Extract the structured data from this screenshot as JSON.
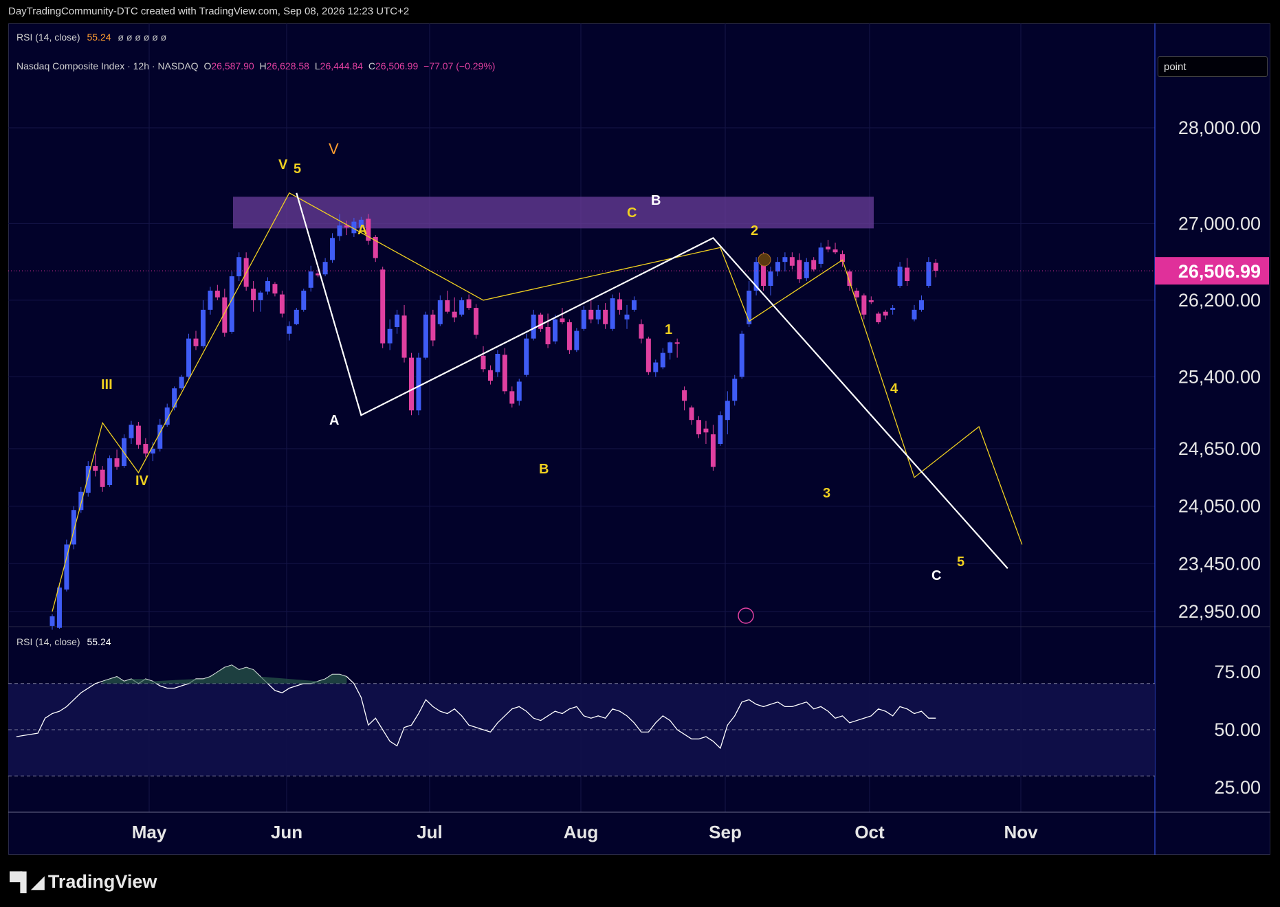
{
  "header": {
    "credit": "DayTradingCommunity-DTC created with TradingView.com, Sep 08, 2026 12:23 UTC+2"
  },
  "rsi_top_legend": {
    "label": "RSI (14, close)",
    "value": "55.24",
    "extras": "ø ø ø ø ø ø"
  },
  "price_legend": {
    "symbol": "Nasdaq Composite Index · 12h · NASDAQ",
    "o_label": "O",
    "o": "26,587.90",
    "h_label": "H",
    "h": "26,628.58",
    "l_label": "L",
    "l": "26,444.84",
    "c_label": "C",
    "c": "26,506.99",
    "change": "−77.07 (−0.29%)"
  },
  "drawing_mode_box": {
    "label": "point"
  },
  "rsi_pane_legend": {
    "label": "RSI (14, close)",
    "value": "55.24"
  },
  "footer": {
    "brand": "TradingView"
  },
  "colors": {
    "background": "#02022a",
    "up": "#3f5cf5",
    "down": "#e040a0",
    "zone": "#6a3d9a",
    "yellow_wave": "#f0d020",
    "white_wave": "#ffffff",
    "price_tag": "#e0309a"
  },
  "chart_data": {
    "type": "candlestick",
    "title": "Nasdaq Composite Index · 12h · NASDAQ",
    "price_axis_ticks": [
      28000,
      27000,
      26200,
      25400,
      24650,
      24050,
      23450,
      22950
    ],
    "price_axis_tick_labels": [
      "28,000.00",
      "27,000.00",
      "26,200.00",
      "25,400.00",
      "24,650.00",
      "24,050.00",
      "23,450.00",
      "22,950.00"
    ],
    "time_axis_labels": [
      "May",
      "Jun",
      "Jul",
      "Aug",
      "Sep",
      "Oct",
      "Nov"
    ],
    "last_price": 26506.99,
    "last_price_label": "26,506.99",
    "resistance_zone": [
      26950,
      27280
    ],
    "candles": [
      {
        "o": 22800,
        "h": 22920,
        "l": 22760,
        "c": 22900
      },
      {
        "o": 22780,
        "h": 23250,
        "l": 22770,
        "c": 23200
      },
      {
        "o": 23180,
        "h": 23700,
        "l": 23160,
        "c": 23650
      },
      {
        "o": 23650,
        "h": 24050,
        "l": 23600,
        "c": 24010
      },
      {
        "o": 24010,
        "h": 24250,
        "l": 23980,
        "c": 24200
      },
      {
        "o": 24190,
        "h": 24520,
        "l": 24150,
        "c": 24470
      },
      {
        "o": 24470,
        "h": 24600,
        "l": 24360,
        "c": 24420
      },
      {
        "o": 24430,
        "h": 24470,
        "l": 24200,
        "c": 24250
      },
      {
        "o": 24270,
        "h": 24580,
        "l": 24250,
        "c": 24550
      },
      {
        "o": 24550,
        "h": 24640,
        "l": 24430,
        "c": 24460
      },
      {
        "o": 24470,
        "h": 24800,
        "l": 24450,
        "c": 24760
      },
      {
        "o": 24760,
        "h": 24940,
        "l": 24700,
        "c": 24900
      },
      {
        "o": 24890,
        "h": 24930,
        "l": 24650,
        "c": 24690
      },
      {
        "o": 24700,
        "h": 24760,
        "l": 24560,
        "c": 24600
      },
      {
        "o": 24600,
        "h": 24720,
        "l": 24520,
        "c": 24650
      },
      {
        "o": 24650,
        "h": 24960,
        "l": 24620,
        "c": 24900
      },
      {
        "o": 24900,
        "h": 25120,
        "l": 24880,
        "c": 25080
      },
      {
        "o": 25080,
        "h": 25300,
        "l": 25050,
        "c": 25280
      },
      {
        "o": 25280,
        "h": 25420,
        "l": 25260,
        "c": 25400
      },
      {
        "o": 25400,
        "h": 25850,
        "l": 25380,
        "c": 25800
      },
      {
        "o": 25800,
        "h": 25880,
        "l": 25680,
        "c": 25720
      },
      {
        "o": 25720,
        "h": 26200,
        "l": 25700,
        "c": 26100
      },
      {
        "o": 26100,
        "h": 26340,
        "l": 26050,
        "c": 26300
      },
      {
        "o": 26300,
        "h": 26360,
        "l": 26200,
        "c": 26230
      },
      {
        "o": 26230,
        "h": 26320,
        "l": 25820,
        "c": 25860
      },
      {
        "o": 25870,
        "h": 26500,
        "l": 25850,
        "c": 26450
      },
      {
        "o": 26450,
        "h": 26700,
        "l": 26400,
        "c": 26650
      },
      {
        "o": 26640,
        "h": 26700,
        "l": 26300,
        "c": 26340
      },
      {
        "o": 26320,
        "h": 26400,
        "l": 26080,
        "c": 26200
      },
      {
        "o": 26200,
        "h": 26300,
        "l": 26080,
        "c": 26280
      },
      {
        "o": 26290,
        "h": 26440,
        "l": 26260,
        "c": 26400
      },
      {
        "o": 26370,
        "h": 26390,
        "l": 26240,
        "c": 26270
      },
      {
        "o": 26260,
        "h": 26300,
        "l": 26020,
        "c": 26060
      },
      {
        "o": 25850,
        "h": 25980,
        "l": 25780,
        "c": 25930
      },
      {
        "o": 25950,
        "h": 26120,
        "l": 25940,
        "c": 26100
      },
      {
        "o": 26100,
        "h": 26320,
        "l": 26080,
        "c": 26300
      },
      {
        "o": 26330,
        "h": 26560,
        "l": 26290,
        "c": 26500
      },
      {
        "o": 26480,
        "h": 26520,
        "l": 26440,
        "c": 26460
      },
      {
        "o": 26470,
        "h": 26640,
        "l": 26450,
        "c": 26600
      },
      {
        "o": 26620,
        "h": 26900,
        "l": 26590,
        "c": 26850
      },
      {
        "o": 26870,
        "h": 27100,
        "l": 26820,
        "c": 26980
      },
      {
        "o": 26980,
        "h": 27030,
        "l": 26880,
        "c": 26960
      },
      {
        "o": 26900,
        "h": 27060,
        "l": 26860,
        "c": 27020
      },
      {
        "o": 26960,
        "h": 27070,
        "l": 26920,
        "c": 27040
      },
      {
        "o": 27050,
        "h": 27100,
        "l": 26780,
        "c": 26820
      },
      {
        "o": 26860,
        "h": 26880,
        "l": 26600,
        "c": 26640
      },
      {
        "o": 26520,
        "h": 26550,
        "l": 25700,
        "c": 25750
      },
      {
        "o": 25750,
        "h": 26000,
        "l": 25680,
        "c": 25900
      },
      {
        "o": 25920,
        "h": 26100,
        "l": 25850,
        "c": 26050
      },
      {
        "o": 26040,
        "h": 26150,
        "l": 25550,
        "c": 25600
      },
      {
        "o": 25600,
        "h": 25650,
        "l": 25000,
        "c": 25050
      },
      {
        "o": 25050,
        "h": 25650,
        "l": 25000,
        "c": 25600
      },
      {
        "o": 25600,
        "h": 26080,
        "l": 25580,
        "c": 26050
      },
      {
        "o": 26050,
        "h": 26100,
        "l": 25720,
        "c": 25780
      },
      {
        "o": 25950,
        "h": 26250,
        "l": 25930,
        "c": 26200
      },
      {
        "o": 26200,
        "h": 26300,
        "l": 26060,
        "c": 26080
      },
      {
        "o": 26080,
        "h": 26230,
        "l": 25970,
        "c": 26020
      },
      {
        "o": 26050,
        "h": 26230,
        "l": 26030,
        "c": 26200
      },
      {
        "o": 26210,
        "h": 26260,
        "l": 26100,
        "c": 26120
      },
      {
        "o": 26120,
        "h": 26160,
        "l": 25800,
        "c": 25840
      },
      {
        "o": 25620,
        "h": 25720,
        "l": 25450,
        "c": 25480
      },
      {
        "o": 25470,
        "h": 25520,
        "l": 25320,
        "c": 25360
      },
      {
        "o": 25450,
        "h": 25680,
        "l": 25400,
        "c": 25640
      },
      {
        "o": 25630,
        "h": 25700,
        "l": 25220,
        "c": 25250
      },
      {
        "o": 25250,
        "h": 25300,
        "l": 25080,
        "c": 25120
      },
      {
        "o": 25150,
        "h": 25380,
        "l": 25100,
        "c": 25350
      },
      {
        "o": 25420,
        "h": 25850,
        "l": 25400,
        "c": 25800
      },
      {
        "o": 25800,
        "h": 26100,
        "l": 25780,
        "c": 26050
      },
      {
        "o": 26050,
        "h": 26070,
        "l": 25870,
        "c": 25900
      },
      {
        "o": 25920,
        "h": 26060,
        "l": 25700,
        "c": 25740
      },
      {
        "o": 25770,
        "h": 26050,
        "l": 25740,
        "c": 26000
      },
      {
        "o": 26010,
        "h": 26120,
        "l": 25950,
        "c": 25970
      },
      {
        "o": 25970,
        "h": 26000,
        "l": 25640,
        "c": 25680
      },
      {
        "o": 25680,
        "h": 25910,
        "l": 25660,
        "c": 25880
      },
      {
        "o": 25900,
        "h": 26140,
        "l": 25880,
        "c": 26100
      },
      {
        "o": 26100,
        "h": 26200,
        "l": 25960,
        "c": 26000
      },
      {
        "o": 26000,
        "h": 26150,
        "l": 25950,
        "c": 26100
      },
      {
        "o": 26100,
        "h": 26170,
        "l": 25900,
        "c": 25950
      },
      {
        "o": 25900,
        "h": 26260,
        "l": 25880,
        "c": 26220
      },
      {
        "o": 26210,
        "h": 26280,
        "l": 26050,
        "c": 26100
      },
      {
        "o": 26000,
        "h": 26150,
        "l": 25900,
        "c": 26050
      },
      {
        "o": 26100,
        "h": 26240,
        "l": 26080,
        "c": 26200
      },
      {
        "o": 25950,
        "h": 26000,
        "l": 25750,
        "c": 25800
      },
      {
        "o": 25800,
        "h": 25820,
        "l": 25420,
        "c": 25450
      },
      {
        "o": 25450,
        "h": 25580,
        "l": 25400,
        "c": 25550
      },
      {
        "o": 25500,
        "h": 25700,
        "l": 25480,
        "c": 25650
      },
      {
        "o": 25650,
        "h": 25770,
        "l": 25580,
        "c": 25760
      },
      {
        "o": 25760,
        "h": 25800,
        "l": 25600,
        "c": 25750
      },
      {
        "o": 25260,
        "h": 25300,
        "l": 25050,
        "c": 25150
      },
      {
        "o": 25080,
        "h": 25100,
        "l": 24900,
        "c": 24950
      },
      {
        "o": 24950,
        "h": 24990,
        "l": 24760,
        "c": 24800
      },
      {
        "o": 24860,
        "h": 24940,
        "l": 24700,
        "c": 24820
      },
      {
        "o": 24800,
        "h": 24900,
        "l": 24420,
        "c": 24460
      },
      {
        "o": 24700,
        "h": 25040,
        "l": 24680,
        "c": 25000
      },
      {
        "o": 24950,
        "h": 25250,
        "l": 24800,
        "c": 25150
      },
      {
        "o": 25150,
        "h": 25420,
        "l": 25100,
        "c": 25380
      },
      {
        "o": 25400,
        "h": 25880,
        "l": 25380,
        "c": 25850
      },
      {
        "o": 25950,
        "h": 26400,
        "l": 25920,
        "c": 26300
      },
      {
        "o": 26300,
        "h": 26650,
        "l": 26250,
        "c": 26600
      },
      {
        "o": 26600,
        "h": 26700,
        "l": 26300,
        "c": 26350
      },
      {
        "o": 26350,
        "h": 26550,
        "l": 26250,
        "c": 26500
      },
      {
        "o": 26500,
        "h": 26650,
        "l": 26450,
        "c": 26600
      },
      {
        "o": 26600,
        "h": 26700,
        "l": 26500,
        "c": 26650
      },
      {
        "o": 26650,
        "h": 26700,
        "l": 26520,
        "c": 26560
      },
      {
        "o": 26620,
        "h": 26690,
        "l": 26380,
        "c": 26420
      },
      {
        "o": 26430,
        "h": 26640,
        "l": 26400,
        "c": 26600
      },
      {
        "o": 26620,
        "h": 26650,
        "l": 26500,
        "c": 26520
      },
      {
        "o": 26580,
        "h": 26800,
        "l": 26540,
        "c": 26750
      },
      {
        "o": 26760,
        "h": 26830,
        "l": 26700,
        "c": 26730
      },
      {
        "o": 26730,
        "h": 26800,
        "l": 26680,
        "c": 26700
      },
      {
        "o": 26680,
        "h": 26720,
        "l": 26550,
        "c": 26600
      },
      {
        "o": 26500,
        "h": 26520,
        "l": 26300,
        "c": 26350
      },
      {
        "o": 26300,
        "h": 26330,
        "l": 26200,
        "c": 26230
      },
      {
        "o": 26250,
        "h": 26270,
        "l": 26000,
        "c": 26050
      },
      {
        "o": 26200,
        "h": 26240,
        "l": 26160,
        "c": 26180
      },
      {
        "o": 26060,
        "h": 26080,
        "l": 25950,
        "c": 25970
      },
      {
        "o": 26080,
        "h": 26100,
        "l": 26000,
        "c": 26040
      },
      {
        "o": 26100,
        "h": 26150,
        "l": 26050,
        "c": 26120
      },
      {
        "o": 26350,
        "h": 26600,
        "l": 26330,
        "c": 26550
      },
      {
        "o": 26540,
        "h": 26640,
        "l": 26350,
        "c": 26400
      },
      {
        "o": 26000,
        "h": 26150,
        "l": 25980,
        "c": 26100
      },
      {
        "o": 26100,
        "h": 26250,
        "l": 26080,
        "c": 26200
      },
      {
        "o": 26350,
        "h": 26650,
        "l": 26330,
        "c": 26600
      },
      {
        "o": 26590,
        "h": 26630,
        "l": 26440,
        "c": 26507
      }
    ],
    "wave_labels_yellow": [
      "III",
      "IV",
      "V",
      "5",
      "A",
      "B",
      "C",
      "1",
      "2",
      "3",
      "4",
      "5"
    ],
    "wave_labels_white": [
      "A",
      "B",
      "C"
    ],
    "wave_label_orange": "V",
    "yellow_wave_path": [
      [
        0,
        22950
      ],
      [
        7,
        24920
      ],
      [
        12,
        24400
      ],
      [
        33,
        27320
      ],
      [
        60,
        26200
      ],
      [
        93,
        26750
      ],
      [
        97,
        25980
      ],
      [
        110,
        26620
      ],
      [
        120,
        24350
      ],
      [
        129,
        24880
      ],
      [
        135,
        23650
      ]
    ],
    "white_wave_path": [
      [
        34,
        27320
      ],
      [
        43,
        25000
      ],
      [
        92,
        26850
      ],
      [
        133,
        23400
      ]
    ],
    "rsi": {
      "title": "RSI (14, close)",
      "current": 55.24,
      "levels": [
        70,
        50,
        30
      ],
      "tick_labels": [
        "75.00",
        "50.00",
        "25.00"
      ],
      "ylim": [
        20,
        85
      ],
      "values": [
        47,
        47.5,
        48,
        48.5,
        55,
        57,
        58,
        60,
        63,
        66,
        68,
        70,
        71,
        72,
        73,
        71,
        72,
        70,
        72,
        71,
        69,
        68,
        68,
        69,
        70,
        72,
        72,
        73,
        75,
        77,
        78,
        76,
        77,
        76,
        73,
        70,
        67,
        66,
        68,
        69,
        70,
        70,
        71,
        72,
        74,
        74,
        73,
        70,
        64,
        52,
        55,
        50,
        45,
        43,
        51,
        52,
        57,
        63,
        60,
        58,
        57,
        59,
        56,
        52,
        51,
        50,
        49,
        53,
        56,
        59,
        60,
        58,
        55,
        54,
        56,
        58,
        57,
        59,
        60,
        56,
        55,
        56,
        55,
        59,
        58,
        56,
        53,
        49,
        49,
        53,
        56,
        54,
        50,
        48,
        46,
        46,
        47,
        45,
        42,
        52,
        56,
        62,
        63,
        61,
        60,
        61,
        62,
        60,
        60,
        61,
        62,
        59,
        60,
        58,
        55,
        56,
        53,
        54,
        55,
        56,
        59,
        58,
        56,
        60,
        59,
        57,
        58,
        55,
        55
      ],
      "future_gap_end": [
        56,
        56,
        58,
        57
      ]
    }
  }
}
